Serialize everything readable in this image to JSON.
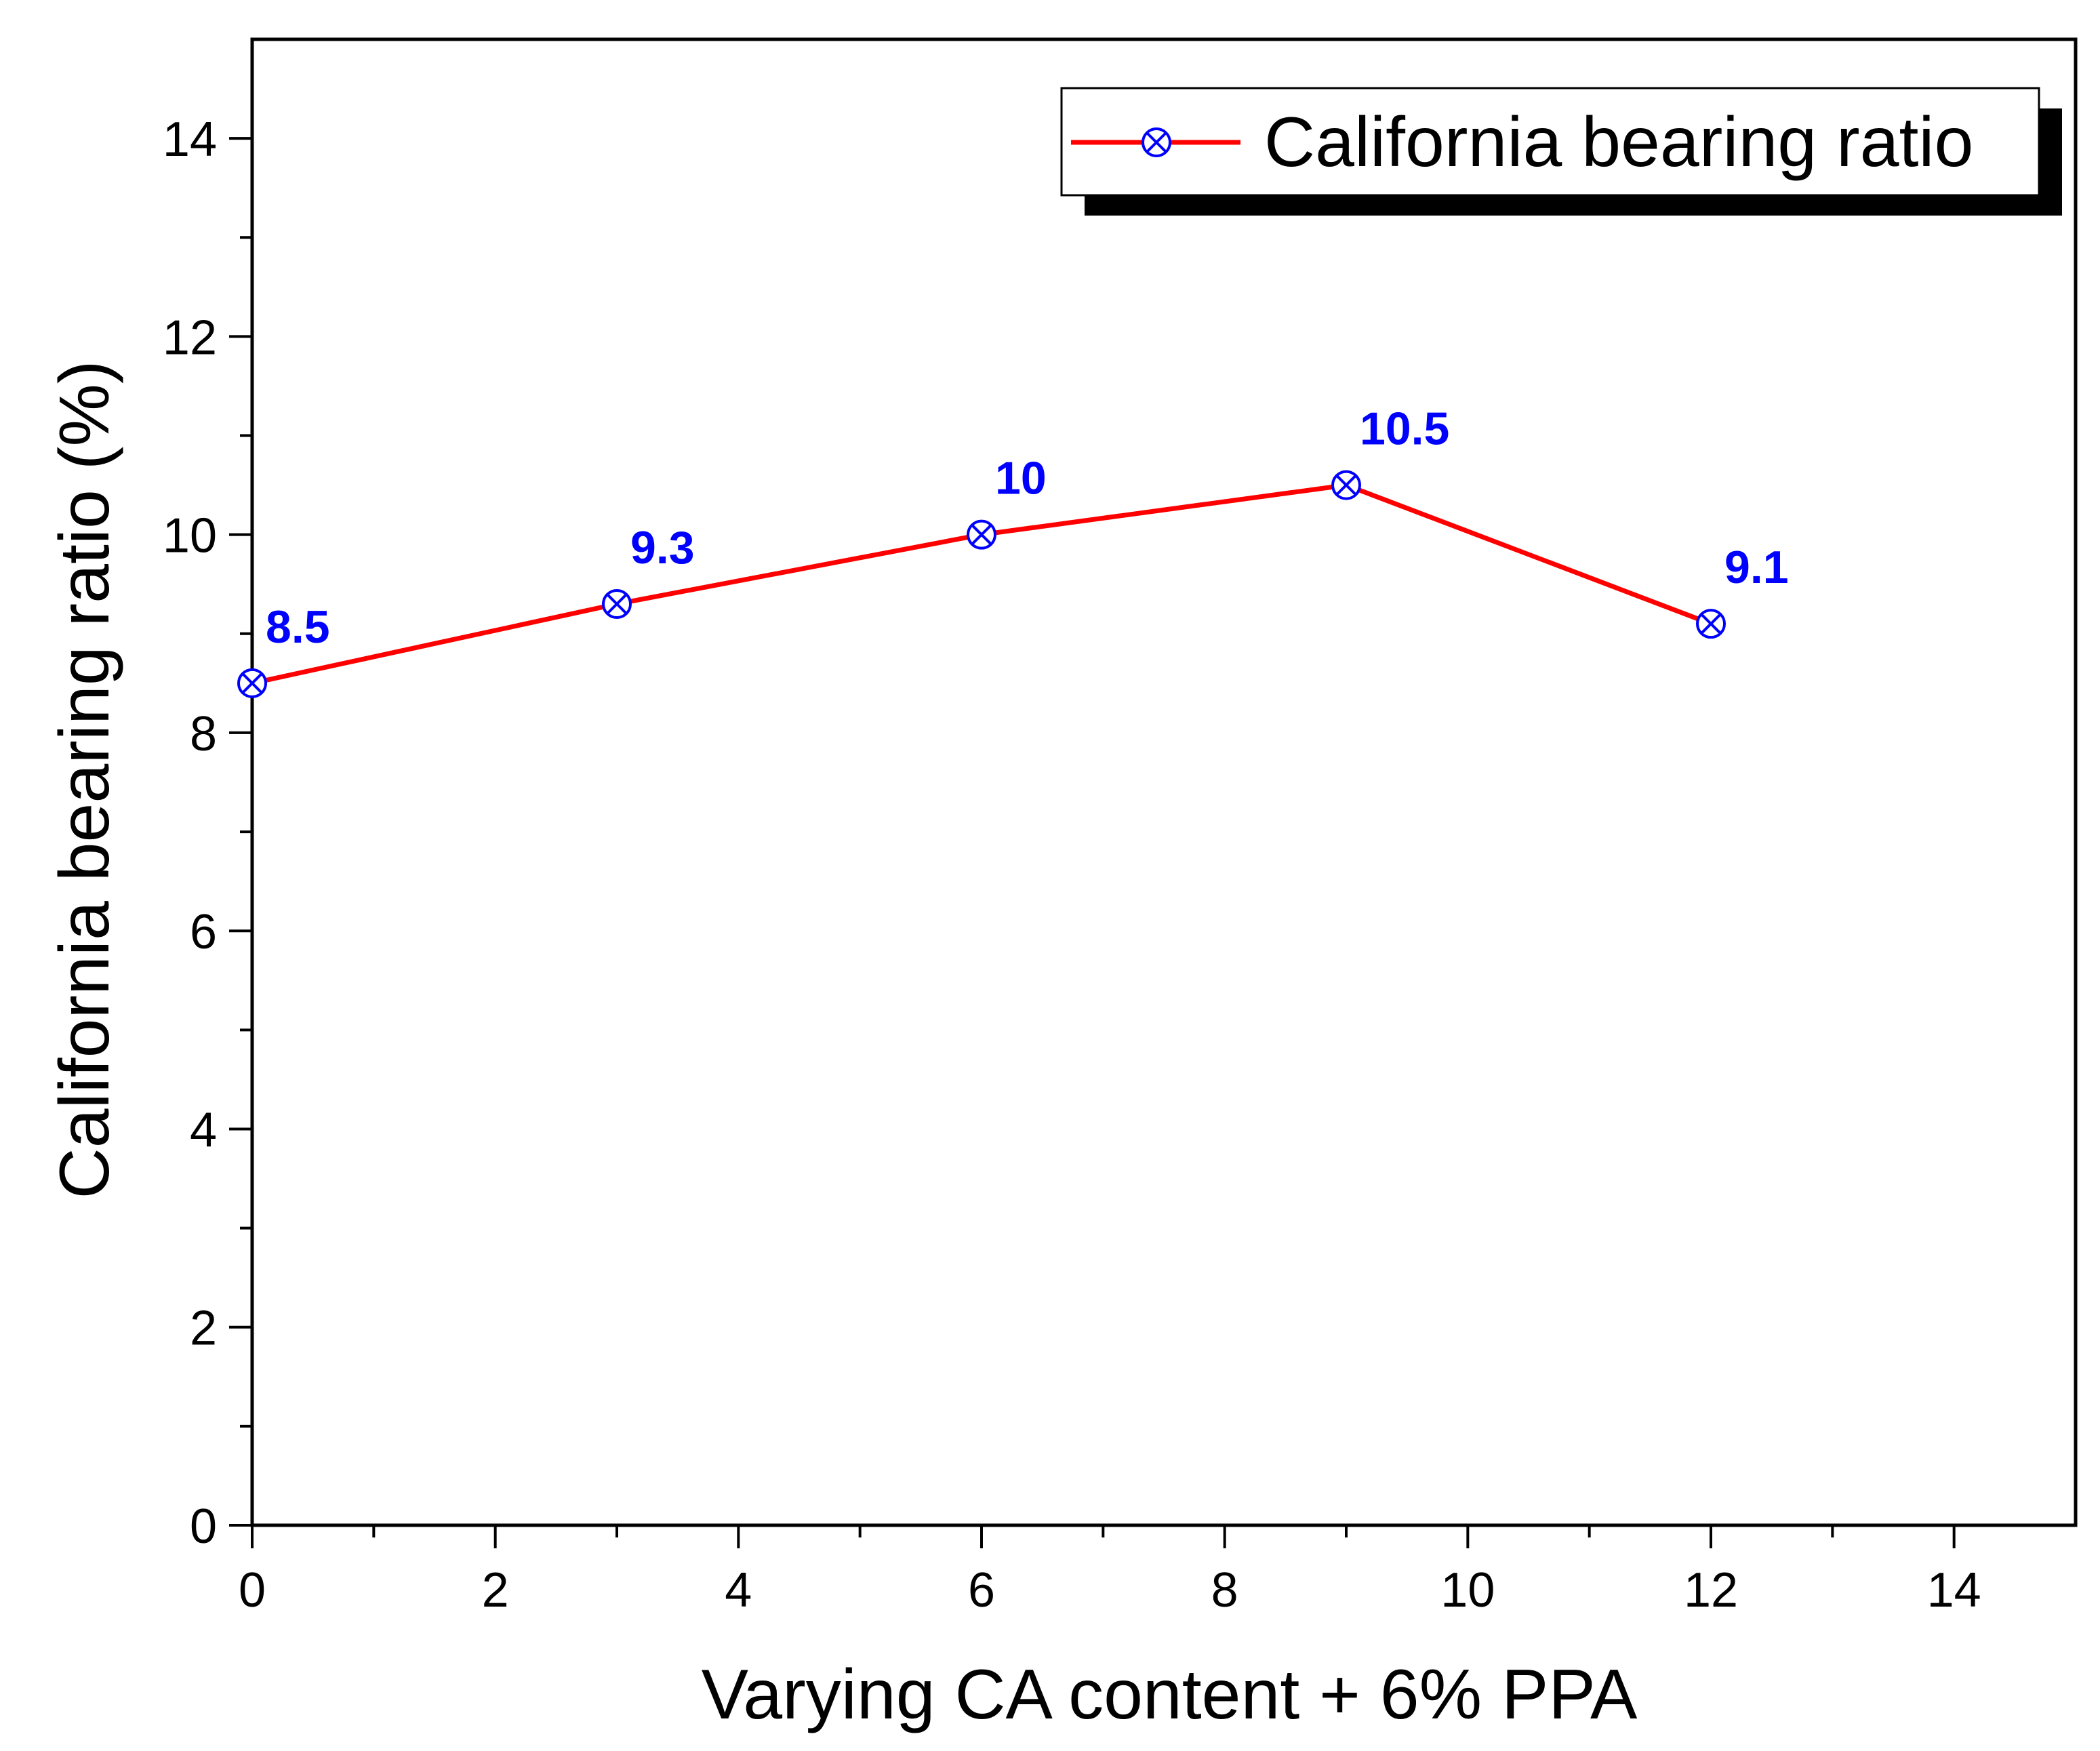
{
  "chart_data": {
    "type": "line",
    "title": "",
    "xlabel": "Varying CA content + 6% PPA",
    "ylabel": "California bearing ratio (%)",
    "xlim": [
      0,
      15
    ],
    "ylim": [
      0,
      15
    ],
    "x_ticks": [
      0,
      2,
      4,
      6,
      8,
      10,
      12,
      14
    ],
    "y_ticks": [
      0,
      2,
      4,
      6,
      8,
      10,
      12,
      14
    ],
    "x_tick_labels": [
      "0",
      "2",
      "4",
      "6",
      "8",
      "10",
      "12",
      "14"
    ],
    "y_tick_labels": [
      "0",
      "2",
      "4",
      "6",
      "8",
      "10",
      "12",
      "14"
    ],
    "grid": false,
    "legend_position": "top-right",
    "series": [
      {
        "name": "California bearing ratio",
        "x": [
          0,
          3,
          6,
          9,
          12
        ],
        "values": [
          8.5,
          9.3,
          10,
          10.5,
          9.1
        ],
        "point_labels": [
          "8.5",
          "9.3",
          "10",
          "10.5",
          "9.1"
        ],
        "line_color": "#ff0000",
        "marker_color": "#0000ff",
        "label_color": "#0000ff",
        "marker": "circle-x"
      }
    ]
  }
}
